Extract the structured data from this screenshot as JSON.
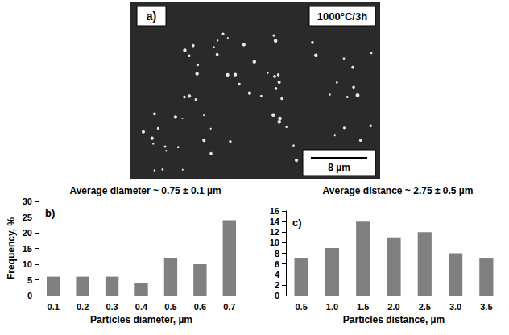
{
  "image": {
    "panel_label": "a)",
    "condition": "1000°C/3h",
    "scale_bar": "8 µm"
  },
  "chart_data": [
    {
      "type": "bar",
      "panel_label": "b)",
      "title": "Average diameter ~ 0.75 ± 0.1 µm",
      "x_label": "Particles diameter, µm",
      "y_label": "Frequency, %",
      "categories": [
        "0.1",
        "0.2",
        "0.3",
        "0.4",
        "0.5",
        "0.6",
        "0.7"
      ],
      "values": [
        6,
        6,
        6,
        4,
        12,
        10,
        24
      ],
      "color": "#808080",
      "ylim": [
        0,
        30
      ],
      "yticks": [
        0,
        5,
        10,
        15,
        20,
        25,
        30
      ],
      "grid": false
    },
    {
      "type": "bar",
      "panel_label": "c)",
      "title": "Average distance ~ 2.75 ± 0.5 µm",
      "x_label": "Particles distance, µm",
      "categories": [
        "0.5",
        "1.0",
        "1.5",
        "2.0",
        "2.5",
        "3.0",
        "3.5"
      ],
      "values": [
        7,
        9,
        14,
        11,
        12,
        8,
        7
      ],
      "color": "#808080",
      "ylim": [
        0,
        16
      ],
      "yticks": [
        0,
        2,
        4,
        6,
        8,
        10,
        12,
        14,
        16
      ],
      "grid": false
    }
  ]
}
